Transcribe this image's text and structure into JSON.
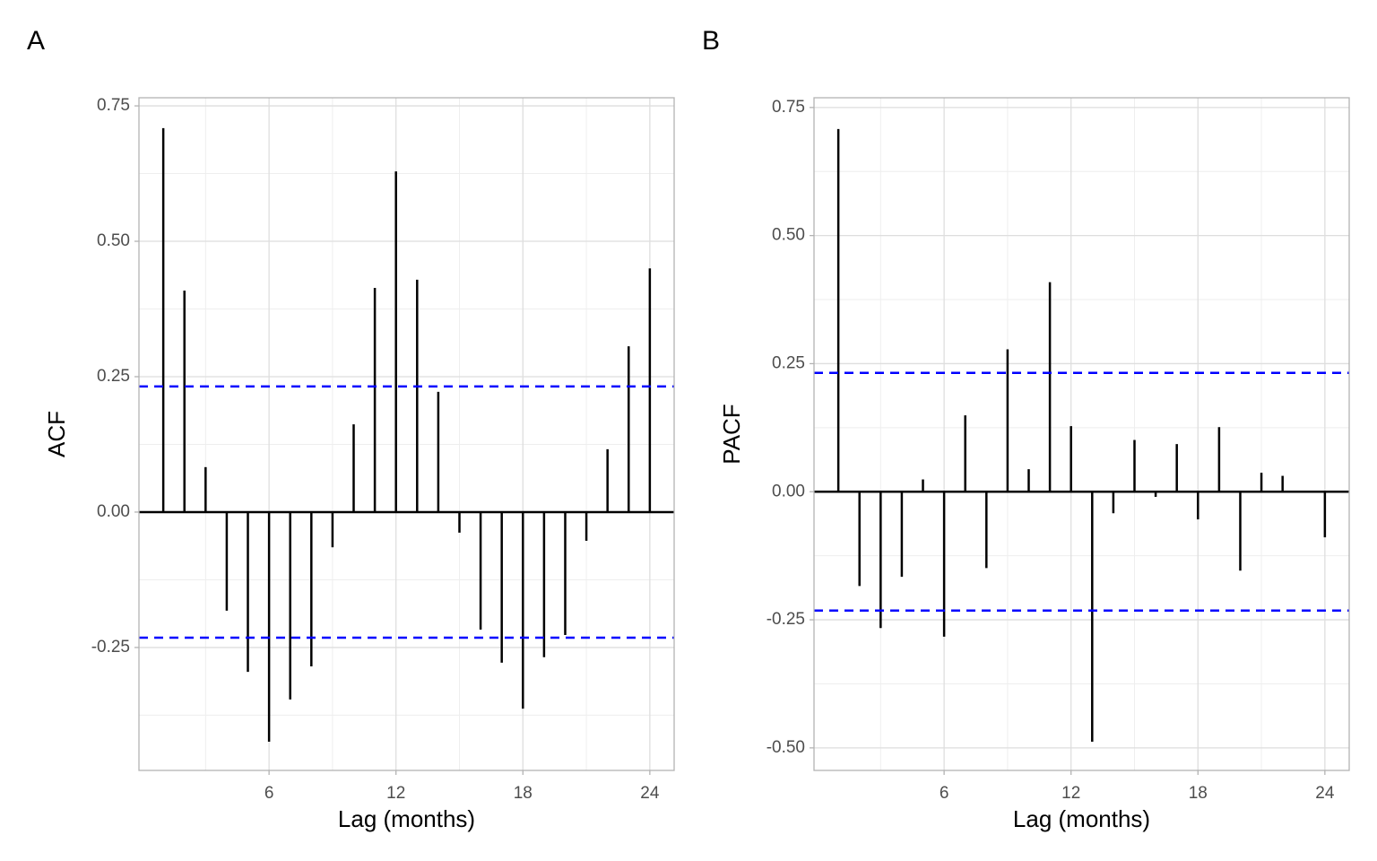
{
  "chart_data": [
    {
      "type": "stem",
      "panel_label": "A",
      "xlabel": "Lag (months)",
      "ylabel": "ACF",
      "x": [
        1,
        2,
        3,
        4,
        5,
        6,
        7,
        8,
        9,
        10,
        11,
        12,
        13,
        14,
        15,
        16,
        17,
        18,
        19,
        20,
        21,
        22,
        23,
        24
      ],
      "values": [
        0.709,
        0.409,
        0.083,
        -0.182,
        -0.295,
        -0.424,
        -0.346,
        -0.285,
        -0.065,
        0.162,
        0.414,
        0.629,
        0.429,
        0.222,
        -0.038,
        -0.217,
        -0.278,
        -0.363,
        -0.268,
        -0.227,
        -0.053,
        0.116,
        0.306,
        0.45
      ],
      "color": "#000000",
      "ci_lines": [
        0.232,
        -0.232
      ],
      "ci_color": "#0000ff",
      "xlim": [
        -0.15,
        25.15
      ],
      "xticks": [
        6,
        12,
        18,
        24
      ],
      "ylim": [
        -0.477,
        0.765
      ],
      "yticks": [
        {
          "value": -0.25,
          "label": "-0.25"
        },
        {
          "value": 0,
          "label": "0.00"
        },
        0.25,
        {
          "value": 0.5,
          "label": "0.50"
        },
        0.75
      ],
      "grid": true
    },
    {
      "type": "stem",
      "panel_label": "B",
      "xlabel": "Lag (months)",
      "ylabel": "PACF",
      "x": [
        1,
        2,
        3,
        4,
        5,
        6,
        7,
        8,
        9,
        10,
        11,
        12,
        13,
        14,
        15,
        16,
        17,
        18,
        19,
        20,
        21,
        22,
        23,
        24
      ],
      "values": [
        0.708,
        -0.184,
        -0.266,
        -0.166,
        0.024,
        -0.283,
        0.149,
        -0.149,
        0.278,
        0.044,
        0.409,
        0.128,
        -0.488,
        -0.042,
        0.101,
        -0.01,
        0.093,
        -0.054,
        0.126,
        -0.154,
        0.037,
        0.031,
        0,
        -0.089
      ],
      "color": "#000000",
      "ci_lines": [
        0.232,
        -0.232
      ],
      "ci_color": "#0000ff",
      "xlim": [
        -0.15,
        25.15
      ],
      "xticks": [
        6,
        12,
        18,
        24
      ],
      "ylim": [
        -0.544,
        0.769
      ],
      "yticks": [
        {
          "value": -0.5,
          "label": "-0.50"
        },
        {
          "value": -0.25,
          "label": "-0.25"
        },
        {
          "value": 0,
          "label": "0.00"
        },
        0.25,
        {
          "value": 0.5,
          "label": "0.50"
        },
        0.75
      ],
      "grid": true
    }
  ]
}
